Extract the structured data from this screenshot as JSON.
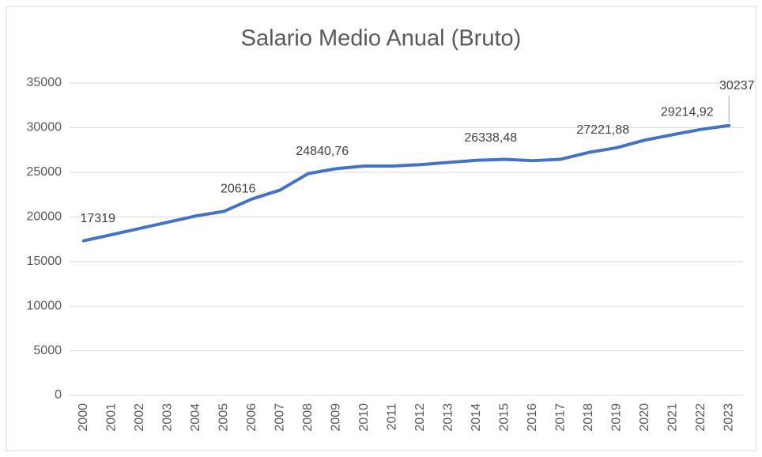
{
  "chart_data": {
    "type": "line",
    "title": "Salario Medio Anual (Bruto)",
    "categories": [
      "2000",
      "2001",
      "2002",
      "2003",
      "2004",
      "2005",
      "2006",
      "2007",
      "2008",
      "2009",
      "2010",
      "2011",
      "2012",
      "2013",
      "2014",
      "2015",
      "2016",
      "2017",
      "2018",
      "2019",
      "2020",
      "2021",
      "2022",
      "2023"
    ],
    "series": [
      {
        "name": "Salario Medio Anual (Bruto)",
        "color": "#4472c4",
        "values": [
          17319,
          18000,
          18700,
          19400,
          20100,
          20616,
          22000,
          23000,
          24840.76,
          25400,
          25700,
          25700,
          25850,
          26100,
          26338.48,
          26450,
          26300,
          26450,
          27221.88,
          27750,
          28600,
          29214.92,
          29800,
          30237
        ],
        "value_labels": [
          "17319",
          null,
          null,
          null,
          null,
          "20616",
          null,
          null,
          "24840,76",
          null,
          null,
          null,
          null,
          null,
          "26338,48",
          null,
          null,
          null,
          "27221,88",
          null,
          null,
          "29214,92",
          null,
          "30237"
        ]
      }
    ],
    "ylim": [
      0,
      35000
    ],
    "yticks": [
      0,
      5000,
      10000,
      15000,
      20000,
      25000,
      30000,
      35000
    ],
    "grid": true
  }
}
